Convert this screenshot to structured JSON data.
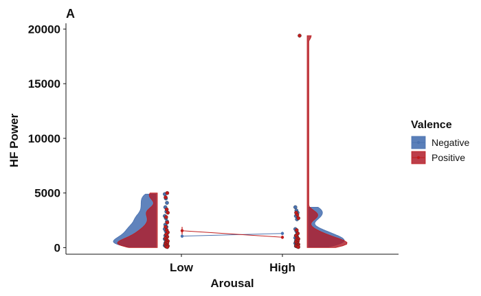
{
  "chart_data": {
    "type": "raincloud",
    "panel_label": "A",
    "xlabel": "Arousal",
    "ylabel": "HF Power",
    "categories": [
      "Low",
      "High"
    ],
    "ylim": [
      -600,
      20400
    ],
    "yticks": [
      0,
      5000,
      10000,
      15000,
      20000
    ],
    "legend": {
      "title": "Valence",
      "placement": "right",
      "entries": [
        "Negative",
        "Positive"
      ]
    },
    "colors": {
      "Negative": "#4a72b0",
      "Positive": "#c01c1c",
      "Negative_fill": "#3d68ad",
      "Positive_fill": "#b01c2a"
    },
    "series": [
      {
        "name": "Negative",
        "means": [
          1050,
          1300
        ],
        "errors": [
          150,
          150
        ],
        "points": [
          [
            4900,
            4500,
            4100,
            3700,
            3300,
            2900,
            2700,
            2400,
            2100,
            1900,
            1700,
            1500,
            1300,
            1100,
            950,
            800,
            650,
            500,
            400,
            300,
            200,
            120
          ],
          [
            3700,
            3400,
            3200,
            2900,
            2600,
            1700,
            1500,
            1300,
            1100,
            1000,
            900,
            800,
            700,
            600,
            500,
            400,
            300,
            200,
            150
          ]
        ]
      },
      {
        "name": "Positive",
        "means": [
          1550,
          950
        ],
        "errors": [
          350,
          150
        ],
        "points": [
          [
            5000,
            4600,
            3500,
            3200,
            2800,
            2300,
            1900,
            1600,
            1400,
            1200,
            1000,
            850,
            700,
            600,
            500,
            400,
            300,
            200,
            150,
            100,
            60
          ],
          [
            19400,
            3200,
            3000,
            2700,
            1600,
            1300,
            1100,
            900,
            800,
            700,
            600,
            500,
            400,
            300,
            250,
            200,
            150,
            100,
            60
          ]
        ]
      }
    ]
  }
}
